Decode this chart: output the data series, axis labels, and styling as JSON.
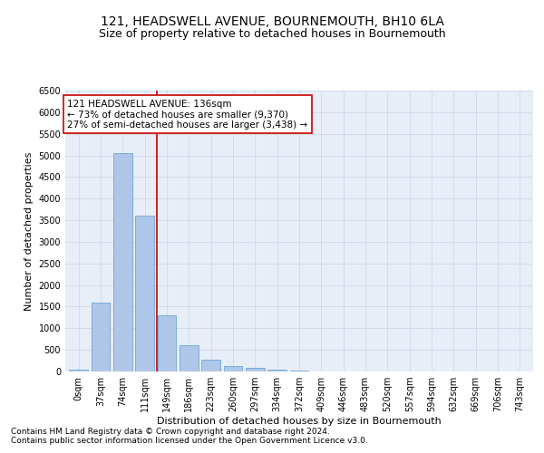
{
  "title_line1": "121, HEADSWELL AVENUE, BOURNEMOUTH, BH10 6LA",
  "title_line2": "Size of property relative to detached houses in Bournemouth",
  "xlabel": "Distribution of detached houses by size in Bournemouth",
  "ylabel": "Number of detached properties",
  "footnote1": "Contains HM Land Registry data © Crown copyright and database right 2024.",
  "footnote2": "Contains public sector information licensed under the Open Government Licence v3.0.",
  "bar_labels": [
    "0sqm",
    "37sqm",
    "74sqm",
    "111sqm",
    "149sqm",
    "186sqm",
    "223sqm",
    "260sqm",
    "297sqm",
    "334sqm",
    "372sqm",
    "409sqm",
    "446sqm",
    "483sqm",
    "520sqm",
    "557sqm",
    "594sqm",
    "632sqm",
    "669sqm",
    "706sqm",
    "743sqm"
  ],
  "bar_values": [
    50,
    1600,
    5050,
    3600,
    1300,
    600,
    280,
    130,
    80,
    40,
    20,
    0,
    0,
    0,
    0,
    0,
    0,
    0,
    0,
    0,
    0
  ],
  "bar_color": "#aec6e8",
  "bar_edge_color": "#5b9bd5",
  "grid_color": "#d0d8e8",
  "background_color": "#e8eef8",
  "vline_position": 3.57,
  "vline_color": "#cc0000",
  "annotation_text": "121 HEADSWELL AVENUE: 136sqm\n← 73% of detached houses are smaller (9,370)\n27% of semi-detached houses are larger (3,438) →",
  "annotation_box_color": "#ffffff",
  "annotation_box_edge": "#cc0000",
  "ylim": [
    0,
    6500
  ],
  "yticks": [
    0,
    500,
    1000,
    1500,
    2000,
    2500,
    3000,
    3500,
    4000,
    4500,
    5000,
    5500,
    6000,
    6500
  ],
  "title_fontsize": 10,
  "subtitle_fontsize": 9,
  "label_fontsize": 8,
  "tick_fontsize": 7,
  "annot_fontsize": 7.5,
  "footnote_fontsize": 6.5
}
